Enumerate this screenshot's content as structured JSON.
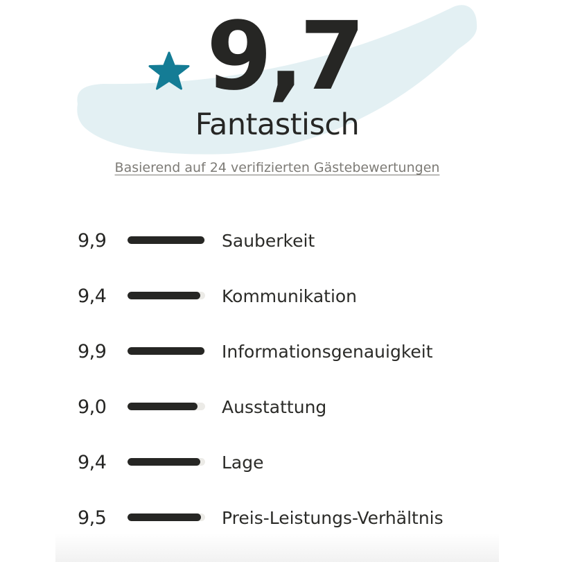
{
  "summary": {
    "score": "9,7",
    "verdict": "Fantastisch",
    "based_on": "Basierend auf 24 verifizierten Gästebewertungen",
    "star_icon": "star-icon",
    "accent_color": "#147c95",
    "swoosh_color": "#e3f0f3"
  },
  "ratings": [
    {
      "value": "9,9",
      "label": "Sauberkeit",
      "fill_percent": 99
    },
    {
      "value": "9,4",
      "label": "Kommunikation",
      "fill_percent": 94
    },
    {
      "value": "9,9",
      "label": "Informationsgenauigkeit",
      "fill_percent": 99
    },
    {
      "value": "9,0",
      "label": "Ausstattung",
      "fill_percent": 90
    },
    {
      "value": "9,4",
      "label": "Lage",
      "fill_percent": 94
    },
    {
      "value": "9,5",
      "label": "Preis-Leistungs-Verhältnis",
      "fill_percent": 95
    }
  ]
}
